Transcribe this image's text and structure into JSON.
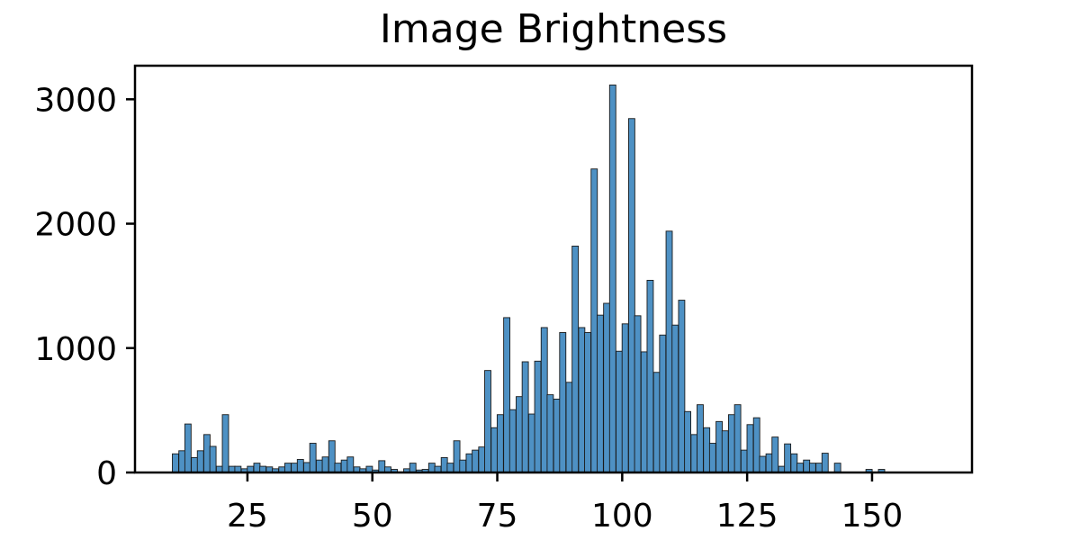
{
  "chart_data": {
    "type": "bar",
    "title": "Image Brightness",
    "xlabel": "",
    "ylabel": "",
    "xlim": [
      2.5,
      170
    ],
    "ylim": [
      0,
      3270
    ],
    "x_ticks": [
      25,
      50,
      75,
      100,
      125,
      150
    ],
    "y_ticks": [
      0,
      1000,
      2000,
      3000
    ],
    "bin_width": 1.25,
    "bar_color": "#4e91c4",
    "grid": false,
    "legend": "none",
    "bins": [
      {
        "x": 10.6,
        "y": 150
      },
      {
        "x": 11.9,
        "y": 175
      },
      {
        "x": 13.1,
        "y": 390
      },
      {
        "x": 14.4,
        "y": 120
      },
      {
        "x": 15.6,
        "y": 175
      },
      {
        "x": 16.9,
        "y": 305
      },
      {
        "x": 18.1,
        "y": 210
      },
      {
        "x": 19.4,
        "y": 50
      },
      {
        "x": 20.6,
        "y": 465
      },
      {
        "x": 21.9,
        "y": 50
      },
      {
        "x": 23.1,
        "y": 50
      },
      {
        "x": 24.4,
        "y": 30
      },
      {
        "x": 25.6,
        "y": 50
      },
      {
        "x": 26.9,
        "y": 75
      },
      {
        "x": 28.1,
        "y": 50
      },
      {
        "x": 29.4,
        "y": 45
      },
      {
        "x": 30.6,
        "y": 30
      },
      {
        "x": 31.9,
        "y": 45
      },
      {
        "x": 33.1,
        "y": 75
      },
      {
        "x": 34.4,
        "y": 75
      },
      {
        "x": 35.6,
        "y": 105
      },
      {
        "x": 36.9,
        "y": 80
      },
      {
        "x": 38.1,
        "y": 235
      },
      {
        "x": 39.4,
        "y": 100
      },
      {
        "x": 40.6,
        "y": 125
      },
      {
        "x": 41.9,
        "y": 255
      },
      {
        "x": 43.1,
        "y": 75
      },
      {
        "x": 44.4,
        "y": 100
      },
      {
        "x": 45.6,
        "y": 125
      },
      {
        "x": 46.9,
        "y": 45
      },
      {
        "x": 48.1,
        "y": 30
      },
      {
        "x": 49.4,
        "y": 50
      },
      {
        "x": 50.6,
        "y": 20
      },
      {
        "x": 51.9,
        "y": 95
      },
      {
        "x": 53.1,
        "y": 45
      },
      {
        "x": 54.4,
        "y": 25
      },
      {
        "x": 55.6,
        "y": 5
      },
      {
        "x": 56.9,
        "y": 30
      },
      {
        "x": 58.1,
        "y": 75
      },
      {
        "x": 59.4,
        "y": 20
      },
      {
        "x": 60.6,
        "y": 25
      },
      {
        "x": 61.9,
        "y": 75
      },
      {
        "x": 63.1,
        "y": 50
      },
      {
        "x": 64.4,
        "y": 120
      },
      {
        "x": 65.6,
        "y": 75
      },
      {
        "x": 66.9,
        "y": 255
      },
      {
        "x": 68.1,
        "y": 100
      },
      {
        "x": 69.4,
        "y": 150
      },
      {
        "x": 70.6,
        "y": 180
      },
      {
        "x": 71.9,
        "y": 205
      },
      {
        "x": 73.1,
        "y": 820
      },
      {
        "x": 74.4,
        "y": 360
      },
      {
        "x": 75.6,
        "y": 465
      },
      {
        "x": 76.9,
        "y": 1245
      },
      {
        "x": 78.1,
        "y": 505
      },
      {
        "x": 79.4,
        "y": 610
      },
      {
        "x": 80.6,
        "y": 890
      },
      {
        "x": 81.9,
        "y": 470
      },
      {
        "x": 83.1,
        "y": 895
      },
      {
        "x": 84.4,
        "y": 1165
      },
      {
        "x": 85.6,
        "y": 625
      },
      {
        "x": 86.9,
        "y": 590
      },
      {
        "x": 88.1,
        "y": 1125
      },
      {
        "x": 89.4,
        "y": 725
      },
      {
        "x": 90.6,
        "y": 1820
      },
      {
        "x": 91.9,
        "y": 1165
      },
      {
        "x": 93.1,
        "y": 1125
      },
      {
        "x": 94.4,
        "y": 2440
      },
      {
        "x": 95.6,
        "y": 1265
      },
      {
        "x": 96.9,
        "y": 1360
      },
      {
        "x": 98.1,
        "y": 3115
      },
      {
        "x": 99.4,
        "y": 975
      },
      {
        "x": 100.6,
        "y": 1195
      },
      {
        "x": 101.9,
        "y": 2845
      },
      {
        "x": 103.1,
        "y": 1260
      },
      {
        "x": 104.4,
        "y": 970
      },
      {
        "x": 105.6,
        "y": 1545
      },
      {
        "x": 106.9,
        "y": 805
      },
      {
        "x": 108.1,
        "y": 1105
      },
      {
        "x": 109.4,
        "y": 1940
      },
      {
        "x": 110.6,
        "y": 1185
      },
      {
        "x": 111.9,
        "y": 1385
      },
      {
        "x": 113.1,
        "y": 490
      },
      {
        "x": 114.4,
        "y": 305
      },
      {
        "x": 115.6,
        "y": 545
      },
      {
        "x": 116.9,
        "y": 360
      },
      {
        "x": 118.1,
        "y": 235
      },
      {
        "x": 119.4,
        "y": 410
      },
      {
        "x": 120.6,
        "y": 335
      },
      {
        "x": 121.9,
        "y": 465
      },
      {
        "x": 123.1,
        "y": 545
      },
      {
        "x": 124.4,
        "y": 180
      },
      {
        "x": 125.6,
        "y": 385
      },
      {
        "x": 126.9,
        "y": 440
      },
      {
        "x": 128.1,
        "y": 130
      },
      {
        "x": 129.4,
        "y": 150
      },
      {
        "x": 130.6,
        "y": 285
      },
      {
        "x": 131.9,
        "y": 50
      },
      {
        "x": 133.1,
        "y": 230
      },
      {
        "x": 134.4,
        "y": 150
      },
      {
        "x": 135.6,
        "y": 75
      },
      {
        "x": 136.9,
        "y": 100
      },
      {
        "x": 138.1,
        "y": 75
      },
      {
        "x": 139.4,
        "y": 75
      },
      {
        "x": 140.6,
        "y": 155
      },
      {
        "x": 141.9,
        "y": 0
      },
      {
        "x": 143.1,
        "y": 75
      },
      {
        "x": 144.4,
        "y": 0
      },
      {
        "x": 145.6,
        "y": 0
      },
      {
        "x": 146.9,
        "y": 0
      },
      {
        "x": 148.1,
        "y": 0
      },
      {
        "x": 149.4,
        "y": 25
      },
      {
        "x": 150.6,
        "y": 0
      },
      {
        "x": 151.9,
        "y": 25
      }
    ]
  }
}
